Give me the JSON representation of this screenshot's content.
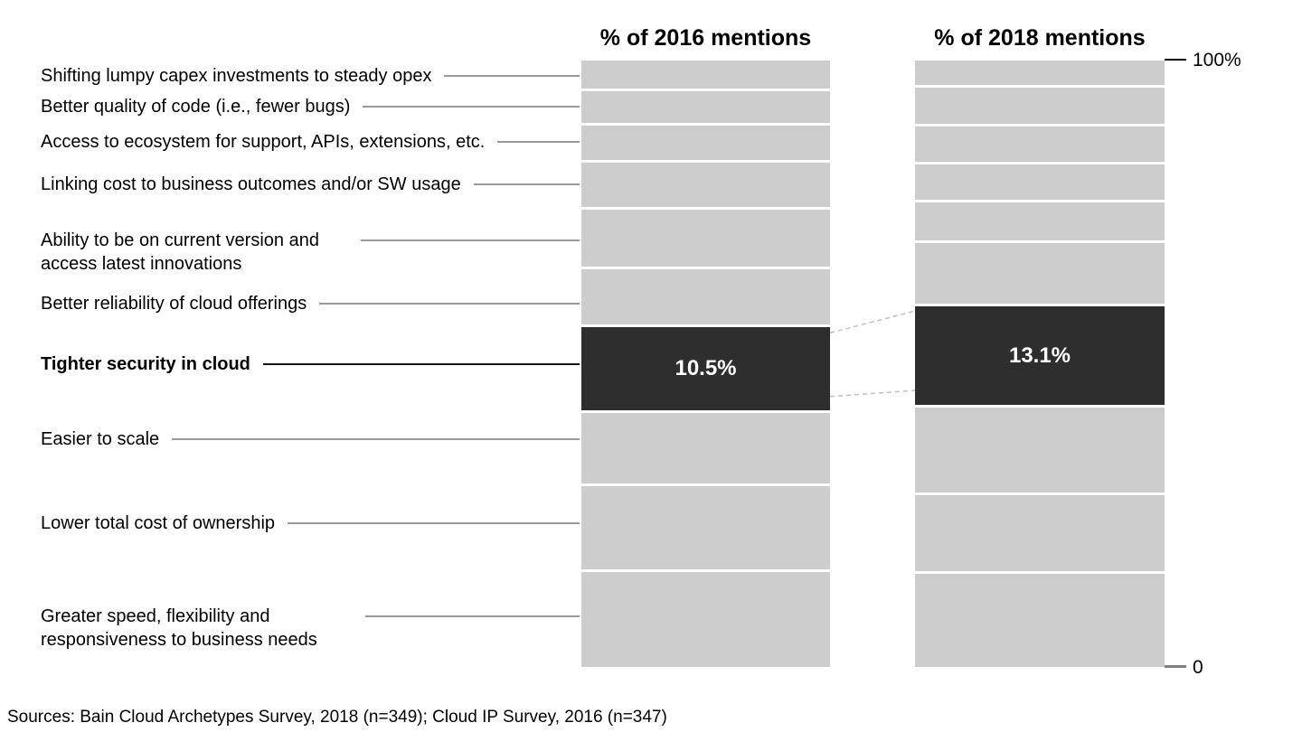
{
  "chart_data": {
    "type": "bar",
    "subtype": "100%-stacked-column-comparison",
    "categories": [
      "Shifting lumpy capex investments to steady opex",
      "Better quality of code (i.e., fewer bugs)",
      "Access to ecosystem for support, APIs, extensions, etc.",
      "Linking cost to business outcomes and/or SW usage",
      "Ability to be on current version and access latest innovations",
      "Better reliability of cloud offerings",
      "Tighter security in cloud",
      "Easier to scale",
      "Lower total cost of ownership",
      "Greater speed, flexibility and responsiveness to business needs"
    ],
    "series": [
      {
        "name": "% of 2016 mentions",
        "values": [
          5.0,
          5.7,
          6.2,
          8.0,
          10.2,
          9.8,
          10.5,
          12.6,
          15.0,
          17.0
        ]
      },
      {
        "name": "% of 2018 mentions",
        "values": [
          4.4,
          6.5,
          6.3,
          6.4,
          6.7,
          11.0,
          13.1,
          15.2,
          13.6,
          16.8
        ]
      }
    ],
    "highlight": {
      "category": "Tighter security in cloud",
      "value_labels": [
        "10.5%",
        "13.1%"
      ],
      "color": "#2e2e2e"
    },
    "segment_color": "#cdcdcd",
    "connector_color": "#bfbfbf",
    "axis": {
      "top_tick_label": "100%",
      "bottom_tick_label": "0",
      "range": [
        0,
        100
      ]
    },
    "grid": false,
    "legend_position": "none"
  },
  "source_note": "Sources: Bain Cloud Archetypes Survey, 2018 (n=349); Cloud IP Survey, 2016 (n=347)"
}
